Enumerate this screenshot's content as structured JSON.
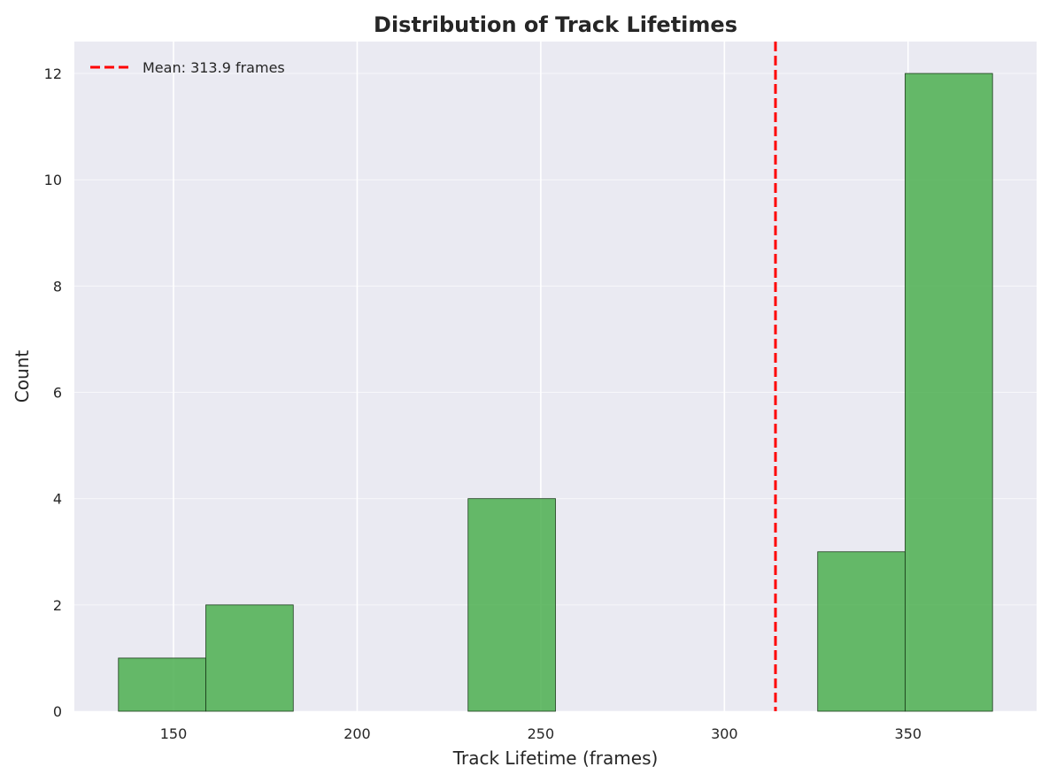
{
  "chart_data": {
    "type": "bar",
    "subtype": "histogram",
    "title": "Distribution of Track Lifetimes",
    "xlabel": "Track Lifetime (frames)",
    "ylabel": "Count",
    "xlim": [
      123,
      385
    ],
    "ylim": [
      0,
      12.6
    ],
    "xticks": [
      150,
      200,
      250,
      300,
      350
    ],
    "yticks": [
      0,
      2,
      4,
      6,
      8,
      10,
      12
    ],
    "bins": [
      {
        "x0": 135,
        "x1": 158.8,
        "count": 1
      },
      {
        "x0": 158.8,
        "x1": 182.6,
        "count": 2
      },
      {
        "x0": 182.6,
        "x1": 206.4,
        "count": 0
      },
      {
        "x0": 206.4,
        "x1": 230.2,
        "count": 0
      },
      {
        "x0": 230.2,
        "x1": 254.0,
        "count": 4
      },
      {
        "x0": 254.0,
        "x1": 277.8,
        "count": 0
      },
      {
        "x0": 277.8,
        "x1": 301.6,
        "count": 0
      },
      {
        "x0": 301.6,
        "x1": 325.4,
        "count": 0
      },
      {
        "x0": 325.4,
        "x1": 349.2,
        "count": 3
      },
      {
        "x0": 349.2,
        "x1": 373.0,
        "count": 12
      }
    ],
    "mean_line": {
      "value": 313.9,
      "label": "Mean: 313.9 frames",
      "color": "#ff0000",
      "style": "dashed"
    },
    "bar_color": "#4caf50",
    "bar_edge_color": "#1a3d1a",
    "background_color": "#eaeaf2",
    "grid": true,
    "legend_position": "top-left"
  }
}
